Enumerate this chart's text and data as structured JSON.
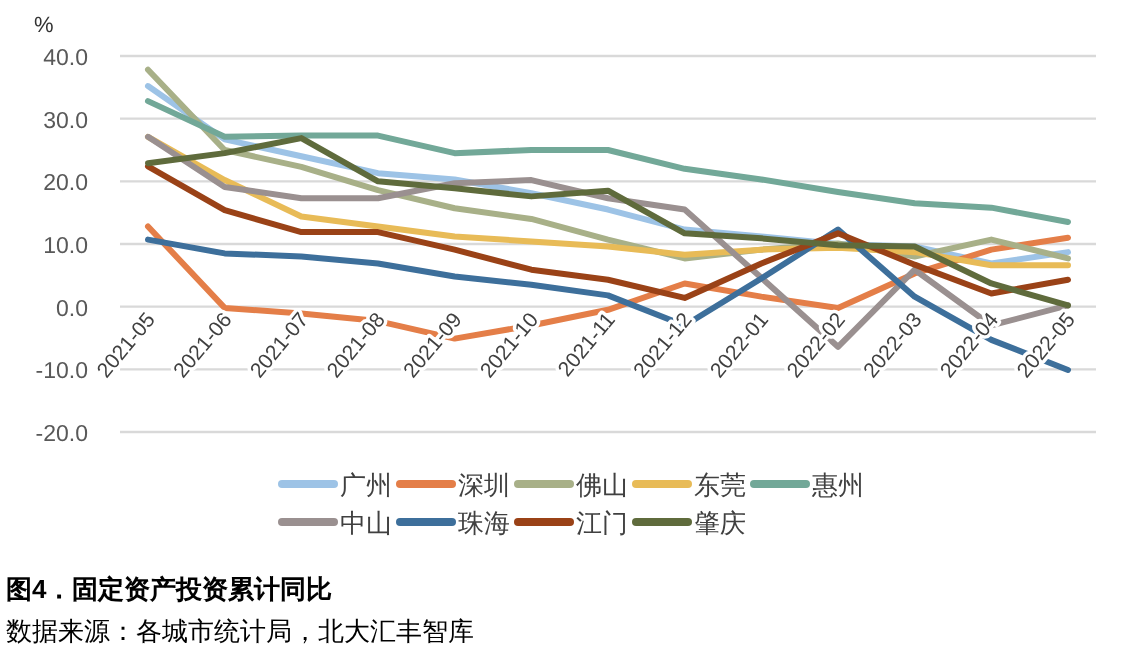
{
  "chart_data": {
    "type": "line",
    "title": "图4．固定资产投资累计同比",
    "ylabel": "%",
    "annotations": [
      "数据来源：各城市统计局，北大汇丰智库"
    ],
    "categories": [
      "2021-05",
      "2021-06",
      "2021-07",
      "2021-08",
      "2021-09",
      "2021-10",
      "2021-11",
      "2021-12",
      "2022-01",
      "2022-02",
      "2022-03",
      "2022-04",
      "2022-05"
    ],
    "ylim": [
      -20,
      40
    ],
    "yticks": [
      {
        "value": -20,
        "label": "-20.0"
      },
      {
        "value": -10,
        "label": "-10.0"
      },
      {
        "value": 0,
        "label": "0.0"
      },
      {
        "value": 10,
        "label": "10.0"
      },
      {
        "value": 20,
        "label": "20.0"
      },
      {
        "value": 30,
        "label": "30.0"
      },
      {
        "value": 40,
        "label": "40.0"
      }
    ],
    "grid": "y",
    "legend": "bottom",
    "marker": "none",
    "line_style": "solid",
    "series": [
      {
        "name": "广州",
        "color": "#9dc3e6",
        "values": [
          35.2,
          26.7,
          24.0,
          21.3,
          20.3,
          18.1,
          15.5,
          12.3,
          11.2,
          10.0,
          9.6,
          6.9,
          8.7
        ]
      },
      {
        "name": "深圳",
        "color": "#e47e48",
        "values": [
          12.8,
          -0.2,
          -1.1,
          -2.3,
          -5.1,
          -3.0,
          -0.5,
          3.7,
          1.6,
          -0.2,
          5.3,
          9.1,
          11.0
        ]
      },
      {
        "name": "佛山",
        "color": "#a8b088",
        "values": [
          37.8,
          25.0,
          22.3,
          18.6,
          15.7,
          14.0,
          10.7,
          7.7,
          9.1,
          10.1,
          8.0,
          10.7,
          7.7
        ]
      },
      {
        "name": "东莞",
        "color": "#e8bb57",
        "values": [
          27.1,
          20.2,
          14.4,
          12.8,
          11.2,
          10.4,
          9.6,
          8.3,
          9.1,
          9.4,
          8.7,
          6.6,
          6.6
        ]
      },
      {
        "name": "惠州",
        "color": "#72a898",
        "values": [
          32.8,
          27.1,
          27.3,
          27.3,
          24.5,
          25.0,
          25.0,
          22.0,
          20.3,
          18.3,
          16.5,
          15.8,
          13.5
        ]
      },
      {
        "name": "中山",
        "color": "#9a9090",
        "values": [
          27.1,
          19.1,
          17.3,
          17.3,
          19.7,
          20.2,
          17.3,
          15.5,
          4.6,
          -6.4,
          5.9,
          -3.0,
          0.2
        ]
      },
      {
        "name": "珠海",
        "color": "#3d6f9b",
        "values": [
          10.7,
          8.5,
          8.0,
          6.9,
          4.8,
          3.5,
          1.8,
          -3.0,
          4.5,
          12.3,
          1.6,
          -5.3,
          -10.1
        ]
      },
      {
        "name": "江门",
        "color": "#9a4217",
        "values": [
          22.4,
          15.4,
          11.9,
          11.9,
          9.1,
          5.9,
          4.3,
          1.4,
          6.9,
          11.7,
          6.7,
          2.1,
          4.3
        ]
      },
      {
        "name": "肇庆",
        "color": "#5f6b3c",
        "values": [
          22.9,
          24.5,
          26.9,
          20.0,
          18.9,
          17.6,
          18.5,
          11.7,
          10.9,
          9.8,
          9.6,
          3.7,
          0.2
        ]
      }
    ]
  }
}
